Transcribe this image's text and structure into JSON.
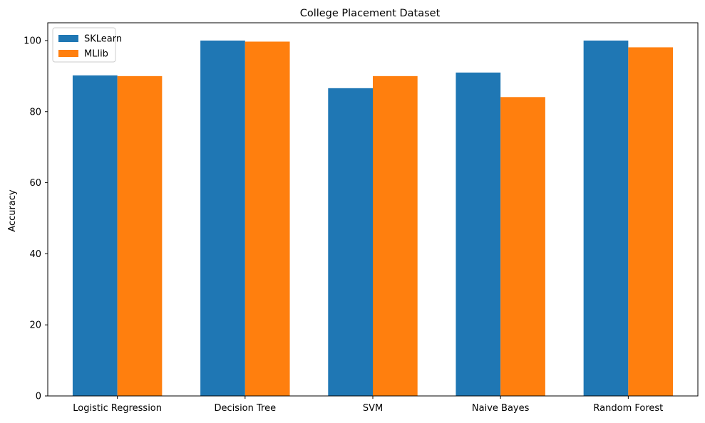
{
  "chart_data": {
    "type": "bar",
    "title": "College Placement Dataset",
    "xlabel": "",
    "ylabel": "Accuracy",
    "categories": [
      "Logistic Regression",
      "Decision Tree",
      "SVM",
      "Naive Bayes",
      "Random Forest"
    ],
    "series": [
      {
        "name": "SKLearn",
        "color": "#1f77b4",
        "values": [
          90.2,
          100.0,
          86.6,
          91.0,
          100.0
        ]
      },
      {
        "name": "MLlib",
        "color": "#ff7f0e",
        "values": [
          90.0,
          99.7,
          90.0,
          84.1,
          98.1
        ]
      }
    ],
    "ylim": [
      0,
      105
    ],
    "yticks": [
      0,
      20,
      40,
      60,
      80,
      100
    ],
    "grid": false,
    "legend_position": "upper left"
  }
}
